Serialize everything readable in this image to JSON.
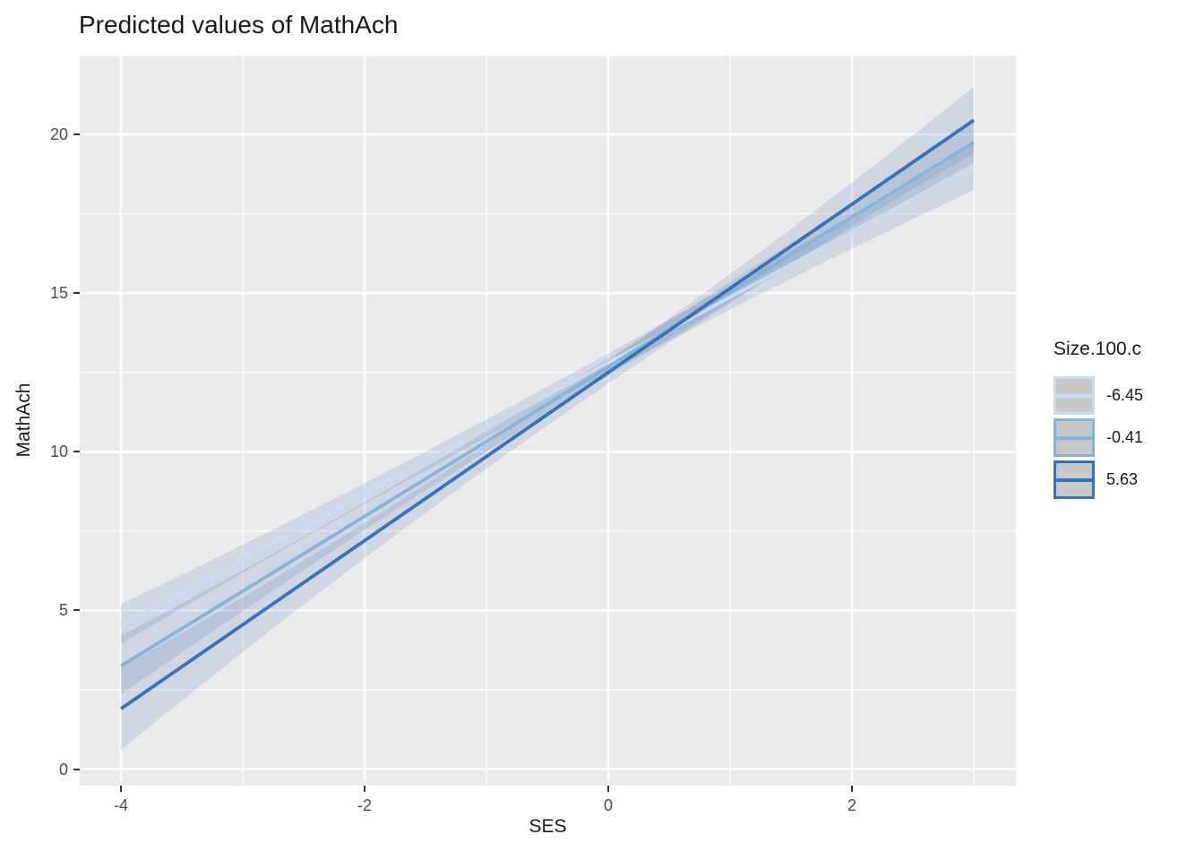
{
  "title": "Predicted values of MathAch",
  "axes": {
    "x_label": "SES",
    "y_label": "MathAch",
    "x_tick_labels": [
      "-4",
      "-2",
      "0",
      "2"
    ],
    "y_tick_labels": [
      "0",
      "5",
      "10",
      "15",
      "20"
    ]
  },
  "legend": {
    "title": "Size.100.c",
    "key_fill": "#C8C8C8",
    "items": [
      {
        "label": "-6.45",
        "color": "#C8DCEE"
      },
      {
        "label": "-0.41",
        "color": "#85B4D8"
      },
      {
        "label": "5.63",
        "color": "#3773B5"
      }
    ]
  },
  "colors": {
    "panel_background": "#EBEBEB",
    "gridline": "#FFFFFF",
    "ribbon_fill": "rgba(93,130,184,0.20)",
    "tick_mark": "#333333",
    "tick_label": "#4D4D4D",
    "text": "#1A1A1A"
  },
  "chart_data": {
    "type": "line",
    "title": "Predicted values of MathAch",
    "xlabel": "SES",
    "ylabel": "MathAch",
    "legend_title": "Size.100.c",
    "legend_position": "right",
    "grid": true,
    "xlim": [
      -4.35,
      3.35
    ],
    "ylim": [
      -0.5,
      22.55
    ],
    "x_ticks": [
      -4,
      -2,
      0,
      2
    ],
    "y_ticks": [
      0,
      5,
      10,
      15,
      20
    ],
    "series": [
      {
        "name": "-6.45",
        "line_color": "#C8DCEE",
        "x": [
          -4,
          3
        ],
        "y": [
          4.55,
          19.0
        ],
        "ci_x": [
          -4,
          0,
          3
        ],
        "ci_lower": [
          3.95,
          12.5,
          18.25
        ],
        "ci_upper": [
          5.2,
          13.1,
          19.75
        ]
      },
      {
        "name": "-0.41",
        "line_color": "#85B4D8",
        "x": [
          -4,
          3
        ],
        "y": [
          3.25,
          19.75
        ],
        "ci_x": [
          -4,
          0,
          3
        ],
        "ci_lower": [
          2.35,
          12.4,
          19.1
        ],
        "ci_upper": [
          4.2,
          12.95,
          20.4
        ]
      },
      {
        "name": "5.63",
        "line_color": "#3773B5",
        "x": [
          -4,
          3
        ],
        "y": [
          1.9,
          20.45
        ],
        "ci_x": [
          -4,
          0,
          3
        ],
        "ci_lower": [
          0.6,
          12.15,
          19.4
        ],
        "ci_upper": [
          3.2,
          12.85,
          21.5
        ]
      }
    ]
  }
}
